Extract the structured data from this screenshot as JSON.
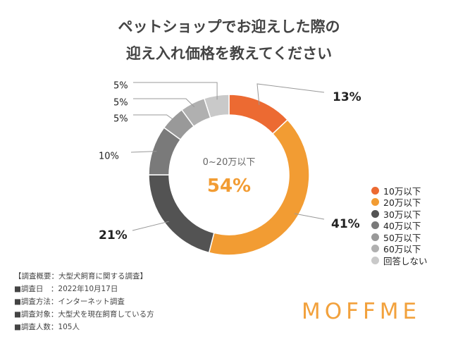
{
  "chart_data": {
    "type": "pie",
    "title": "ペットショップでお迎えした際の",
    "subtitle": "迎え入れ価格を教えてください",
    "categories": [
      "10万以下",
      "20万以下",
      "30万以下",
      "40万以下",
      "50万以下",
      "60万以下",
      "回答しない"
    ],
    "values": [
      13,
      41,
      21,
      10,
      5,
      5,
      5
    ],
    "value_labels": [
      "13%",
      "41%",
      "21%",
      "10%",
      "5%",
      "5%",
      "5%"
    ],
    "colors": [
      "#ec6a32",
      "#f29c33",
      "#535353",
      "#7a7a7a",
      "#999999",
      "#b0b0b0",
      "#c9c9c9"
    ],
    "center_label": "0~20万以下",
    "center_value": "54%",
    "legend_position": "right"
  },
  "notes": [
    "【調査概要：大型犬飼育に関する調査】",
    "■調査日　：2022年10月17日",
    "■調査方法：インターネット調査",
    "■調査対象：大型犬を現在飼育している方",
    "■調査人数：105人"
  ],
  "logo": "MOFFME",
  "accent_color": "#f29c33"
}
